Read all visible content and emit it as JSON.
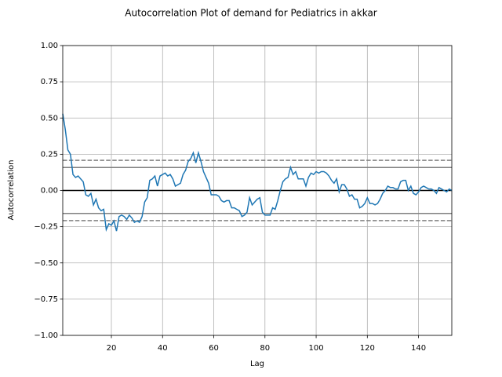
{
  "chart_data": {
    "type": "line",
    "title": "Autocorrelation Plot of demand for Pediatrics in akkar",
    "x_label": "Lag",
    "y_label": "Autocorrelation",
    "x": [
      1,
      2,
      3,
      4,
      5,
      6,
      7,
      8,
      9,
      10,
      11,
      12,
      13,
      14,
      15,
      16,
      17,
      18,
      19,
      20,
      21,
      22,
      23,
      24,
      25,
      26,
      27,
      28,
      29,
      30,
      31,
      32,
      33,
      34,
      35,
      36,
      37,
      38,
      39,
      40,
      41,
      42,
      43,
      44,
      45,
      46,
      47,
      48,
      49,
      50,
      51,
      52,
      53,
      54,
      55,
      56,
      57,
      58,
      59,
      60,
      61,
      62,
      63,
      64,
      65,
      66,
      67,
      68,
      69,
      70,
      71,
      72,
      73,
      74,
      75,
      76,
      77,
      78,
      79,
      80,
      81,
      82,
      83,
      84,
      85,
      86,
      87,
      88,
      89,
      90,
      91,
      92,
      93,
      94,
      95,
      96,
      97,
      98,
      99,
      100,
      101,
      102,
      103,
      104,
      105,
      106,
      107,
      108,
      109,
      110,
      111,
      112,
      113,
      114,
      115,
      116,
      117,
      118,
      119,
      120,
      121,
      122,
      123,
      124,
      125,
      126,
      127,
      128,
      129,
      130,
      131,
      132,
      133,
      134,
      135,
      136,
      137,
      138,
      139,
      140,
      141,
      142,
      143,
      144,
      145,
      146,
      147,
      148,
      149,
      150,
      151,
      152,
      153
    ],
    "series": [
      {
        "color": "#1f77b4",
        "values": [
          0.53,
          0.42,
          0.28,
          0.25,
          0.11,
          0.09,
          0.1,
          0.08,
          0.06,
          -0.03,
          -0.04,
          -0.02,
          -0.1,
          -0.06,
          -0.12,
          -0.14,
          -0.13,
          -0.27,
          -0.23,
          -0.24,
          -0.21,
          -0.28,
          -0.18,
          -0.17,
          -0.18,
          -0.2,
          -0.17,
          -0.19,
          -0.22,
          -0.21,
          -0.22,
          -0.18,
          -0.08,
          -0.05,
          0.07,
          0.08,
          0.1,
          0.03,
          0.1,
          0.11,
          0.12,
          0.1,
          0.11,
          0.08,
          0.03,
          0.04,
          0.05,
          0.11,
          0.14,
          0.2,
          0.22,
          0.26,
          0.19,
          0.26,
          0.2,
          0.13,
          0.09,
          0.05,
          -0.03,
          -0.03,
          -0.03,
          -0.04,
          -0.07,
          -0.08,
          -0.07,
          -0.07,
          -0.12,
          -0.12,
          -0.13,
          -0.14,
          -0.18,
          -0.17,
          -0.15,
          -0.05,
          -0.1,
          -0.08,
          -0.06,
          -0.05,
          -0.15,
          -0.17,
          -0.17,
          -0.17,
          -0.12,
          -0.13,
          -0.07,
          0.0,
          0.06,
          0.08,
          0.09,
          0.16,
          0.11,
          0.13,
          0.08,
          0.08,
          0.08,
          0.03,
          0.09,
          0.12,
          0.11,
          0.13,
          0.12,
          0.13,
          0.13,
          0.12,
          0.1,
          0.07,
          0.05,
          0.08,
          -0.01,
          0.04,
          0.04,
          0.01,
          -0.04,
          -0.03,
          -0.06,
          -0.06,
          -0.12,
          -0.11,
          -0.09,
          -0.05,
          -0.09,
          -0.09,
          -0.1,
          -0.09,
          -0.06,
          -0.02,
          0.0,
          0.03,
          0.02,
          0.02,
          0.01,
          0.01,
          0.06,
          0.07,
          0.07,
          0.0,
          0.03,
          -0.02,
          -0.03,
          -0.01,
          0.02,
          0.03,
          0.02,
          0.01,
          0.01,
          0.0,
          -0.02,
          0.02,
          0.01,
          0.0,
          -0.01,
          0.01,
          0.0
        ]
      }
    ],
    "hlines": [
      {
        "value": 0.2083,
        "color": "#808080",
        "dashed": true
      },
      {
        "value": 0.1585,
        "color": "#808080",
        "dashed": false
      },
      {
        "value": 0,
        "color": "#000000",
        "dashed": false
      },
      {
        "value": -0.1585,
        "color": "#808080",
        "dashed": false
      },
      {
        "value": -0.2083,
        "color": "#808080",
        "dashed": true
      }
    ],
    "xlim": [
      1,
      153
    ],
    "xticks": [
      20,
      40,
      60,
      80,
      100,
      120,
      140
    ],
    "ylim": [
      -1,
      1
    ],
    "yticks": [
      {
        "value": -1,
        "label": "−1.00"
      },
      {
        "value": -0.75,
        "label": "−0.75"
      },
      {
        "value": -0.5,
        "label": "−0.50"
      },
      {
        "value": -0.25,
        "label": "−0.25"
      },
      {
        "value": 0,
        "label": "0.00"
      },
      {
        "value": 0.25,
        "label": "0.25"
      },
      {
        "value": 0.5,
        "label": "0.50"
      },
      {
        "value": 0.75,
        "label": "0.75"
      },
      {
        "value": 1,
        "label": "1.00"
      }
    ],
    "grid": true
  }
}
